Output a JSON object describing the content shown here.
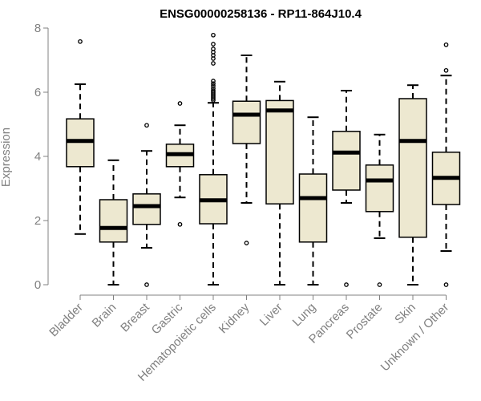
{
  "chart_data": {
    "type": "boxplot",
    "title": "ENSG00000258136 - RP11-864J10.4",
    "xlabel": "",
    "ylabel": "Expression",
    "ylim": [
      0,
      8
    ],
    "yticks": [
      0,
      2,
      4,
      6,
      8
    ],
    "grid": false,
    "legend": "none",
    "box_fill": "#ede8d0",
    "box_stroke": "#000000",
    "axis_color": "#808080",
    "categories": [
      "Bladder",
      "Brain",
      "Breast",
      "Gastric",
      "Hematopoietic cells",
      "Kidney",
      "Liver",
      "Lung",
      "Pancreas",
      "Prostate",
      "Skin",
      "Unknown / Other"
    ],
    "boxes": [
      {
        "whisker_low": 1.58,
        "q1": 3.68,
        "median": 4.48,
        "q3": 5.17,
        "whisker_high": 6.25,
        "outliers": [
          7.58
        ]
      },
      {
        "whisker_low": 0.0,
        "q1": 1.33,
        "median": 1.77,
        "q3": 2.65,
        "whisker_high": 3.88,
        "outliers": []
      },
      {
        "whisker_low": 1.15,
        "q1": 1.88,
        "median": 2.45,
        "q3": 2.83,
        "whisker_high": 4.17,
        "outliers": [
          0.0,
          4.97
        ]
      },
      {
        "whisker_low": 2.72,
        "q1": 3.68,
        "median": 4.07,
        "q3": 4.38,
        "whisker_high": 4.97,
        "outliers": [
          1.88,
          5.65
        ]
      },
      {
        "whisker_low": 0.0,
        "q1": 1.9,
        "median": 2.63,
        "q3": 3.43,
        "whisker_high": 5.67,
        "outliers": [
          5.75,
          5.8,
          5.85,
          5.9,
          5.95,
          6.0,
          6.05,
          6.12,
          6.2,
          6.27,
          6.35,
          6.9,
          7.05,
          7.15,
          7.25,
          7.35,
          7.5,
          7.78
        ]
      },
      {
        "whisker_low": 2.55,
        "q1": 4.4,
        "median": 5.3,
        "q3": 5.72,
        "whisker_high": 7.15,
        "outliers": [
          1.3
        ]
      },
      {
        "whisker_low": 0.0,
        "q1": 2.52,
        "median": 5.43,
        "q3": 5.74,
        "whisker_high": 6.33,
        "outliers": []
      },
      {
        "whisker_low": 0.0,
        "q1": 1.33,
        "median": 2.7,
        "q3": 3.45,
        "whisker_high": 5.22,
        "outliers": []
      },
      {
        "whisker_low": 2.55,
        "q1": 2.95,
        "median": 4.12,
        "q3": 4.78,
        "whisker_high": 6.05,
        "outliers": [
          0.0
        ]
      },
      {
        "whisker_low": 1.45,
        "q1": 2.28,
        "median": 3.25,
        "q3": 3.73,
        "whisker_high": 4.68,
        "outliers": [
          0.0
        ]
      },
      {
        "whisker_low": 0.0,
        "q1": 1.48,
        "median": 4.48,
        "q3": 5.8,
        "whisker_high": 6.22,
        "outliers": []
      },
      {
        "whisker_low": 1.05,
        "q1": 2.5,
        "median": 3.33,
        "q3": 4.13,
        "whisker_high": 6.52,
        "outliers": [
          0.0,
          6.68,
          7.48
        ]
      }
    ]
  }
}
